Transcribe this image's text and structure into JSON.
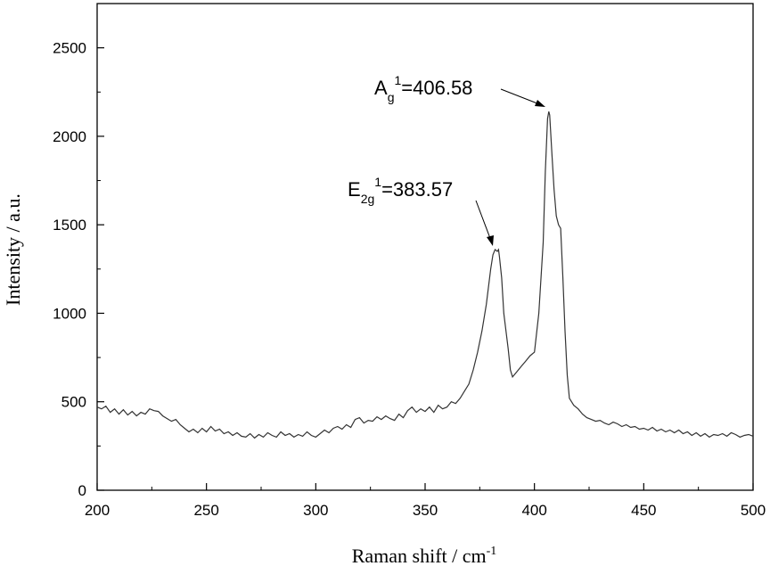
{
  "chart_data": {
    "type": "line",
    "xlabel": "Raman shift / cm",
    "xlabel_sup": "-1",
    "ylabel": "Intensity / a.u.",
    "xlim": [
      200,
      500
    ],
    "ylim": [
      0,
      2750
    ],
    "xticks": [
      200,
      250,
      300,
      350,
      400,
      450,
      500
    ],
    "xtick_labels": [
      "200",
      "250",
      "300",
      "350",
      "400",
      "450",
      "500"
    ],
    "yticks": [
      0,
      500,
      1000,
      1500,
      2000,
      2500
    ],
    "ytick_labels": [
      "0",
      "500",
      "1000",
      "1500",
      "2000",
      "2500"
    ],
    "grid": false,
    "legend": "none",
    "line_color": "#333333",
    "annotations": [
      {
        "base": "A",
        "sub": "g",
        "sup": "1",
        "value": "=406.58",
        "x": 406.58,
        "y": 2140
      },
      {
        "base": "E",
        "sub": "2g",
        "sup": "1",
        "value": "=383.57",
        "x": 383.57,
        "y": 1360
      }
    ],
    "series": [
      {
        "x": [
          200,
          202,
          204,
          206,
          208,
          210,
          212,
          214,
          216,
          218,
          220,
          222,
          224,
          226,
          228,
          230,
          232,
          234,
          236,
          238,
          240,
          242,
          244,
          246,
          248,
          250,
          252,
          254,
          256,
          258,
          260,
          262,
          264,
          266,
          268,
          270,
          272,
          274,
          276,
          278,
          280,
          282,
          284,
          286,
          288,
          290,
          292,
          294,
          296,
          298,
          300,
          302,
          304,
          306,
          308,
          310,
          312,
          314,
          316,
          318,
          320,
          322,
          324,
          326,
          328,
          330,
          332,
          334,
          336,
          338,
          340,
          342,
          344,
          346,
          348,
          350,
          352,
          354,
          356,
          358,
          360,
          362,
          364,
          366,
          368,
          370,
          372,
          374,
          376,
          378,
          380,
          381,
          382,
          383,
          383.57,
          384,
          385,
          386,
          388,
          389,
          390,
          392,
          394,
          396,
          398,
          400,
          402,
          404,
          405,
          406,
          406.58,
          407,
          408,
          409,
          410,
          411,
          412,
          413,
          414,
          415,
          416,
          418,
          420,
          422,
          424,
          426,
          428,
          430,
          432,
          434,
          436,
          438,
          440,
          442,
          444,
          446,
          448,
          450,
          452,
          454,
          456,
          458,
          460,
          462,
          464,
          466,
          468,
          470,
          472,
          474,
          476,
          478,
          480,
          482,
          484,
          486,
          488,
          490,
          492,
          494,
          496,
          498,
          500
        ],
        "y": [
          470,
          460,
          475,
          440,
          460,
          430,
          455,
          425,
          445,
          420,
          440,
          430,
          460,
          450,
          445,
          420,
          405,
          390,
          400,
          370,
          350,
          330,
          345,
          325,
          350,
          330,
          360,
          335,
          345,
          320,
          330,
          310,
          325,
          305,
          300,
          320,
          295,
          315,
          300,
          325,
          310,
          300,
          330,
          310,
          320,
          300,
          315,
          305,
          330,
          310,
          300,
          320,
          340,
          325,
          350,
          360,
          345,
          370,
          355,
          400,
          410,
          380,
          395,
          390,
          415,
          400,
          420,
          405,
          395,
          430,
          410,
          450,
          470,
          440,
          460,
          445,
          470,
          440,
          480,
          460,
          470,
          500,
          490,
          520,
          560,
          600,
          680,
          780,
          900,
          1050,
          1250,
          1330,
          1360,
          1350,
          1360,
          1320,
          1200,
          1000,
          800,
          680,
          640,
          670,
          700,
          730,
          760,
          780,
          1000,
          1400,
          1800,
          2100,
          2140,
          2120,
          1900,
          1700,
          1550,
          1500,
          1480,
          1200,
          900,
          650,
          520,
          480,
          460,
          430,
          410,
          400,
          390,
          395,
          380,
          370,
          385,
          375,
          360,
          370,
          355,
          360,
          345,
          350,
          340,
          355,
          335,
          345,
          330,
          340,
          325,
          340,
          320,
          330,
          310,
          325,
          305,
          320,
          300,
          315,
          310,
          320,
          305,
          325,
          315,
          300,
          310,
          315,
          305
        ]
      }
    ]
  }
}
